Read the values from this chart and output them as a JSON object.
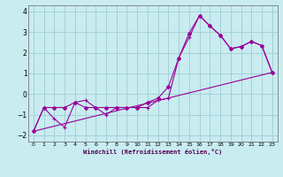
{
  "xlabel": "Windchill (Refroidissement éolien,°C)",
  "bg_color": "#c8ecf0",
  "grid_color": "#a0ccd4",
  "line_color": "#990099",
  "xlim": [
    -0.5,
    23.5
  ],
  "ylim": [
    -2.3,
    4.3
  ],
  "xticks": [
    0,
    1,
    2,
    3,
    4,
    5,
    6,
    7,
    8,
    9,
    10,
    11,
    12,
    13,
    14,
    15,
    16,
    17,
    18,
    19,
    20,
    21,
    22,
    23
  ],
  "yticks": [
    -2,
    -1,
    0,
    1,
    2,
    3,
    4
  ],
  "series1_x": [
    0,
    1,
    2,
    3,
    4,
    5,
    6,
    7,
    8,
    9,
    10,
    11,
    12,
    13,
    14,
    15,
    16,
    17,
    18,
    19,
    20,
    21,
    22,
    23
  ],
  "series1_y": [
    -1.8,
    -0.65,
    -0.65,
    -0.65,
    -0.4,
    -0.65,
    -0.65,
    -0.65,
    -0.65,
    -0.65,
    -0.65,
    -0.4,
    -0.2,
    0.35,
    1.75,
    2.95,
    3.8,
    3.3,
    2.85,
    2.2,
    2.3,
    2.55,
    2.35,
    1.05
  ],
  "series2_x": [
    0,
    1,
    2,
    3,
    4,
    5,
    6,
    7,
    8,
    9,
    10,
    11,
    12,
    13,
    14,
    15,
    16,
    17,
    18,
    19,
    20,
    21,
    22,
    23
  ],
  "series2_y": [
    -1.8,
    -0.65,
    -1.2,
    -1.6,
    -0.4,
    -0.3,
    -0.65,
    -1.0,
    -0.65,
    -0.65,
    -0.65,
    -0.65,
    -0.3,
    -0.2,
    1.75,
    2.75,
    3.8,
    3.3,
    2.85,
    2.2,
    2.3,
    2.55,
    2.35,
    1.05
  ],
  "series3_x": [
    0,
    23
  ],
  "series3_y": [
    -1.8,
    1.05
  ]
}
